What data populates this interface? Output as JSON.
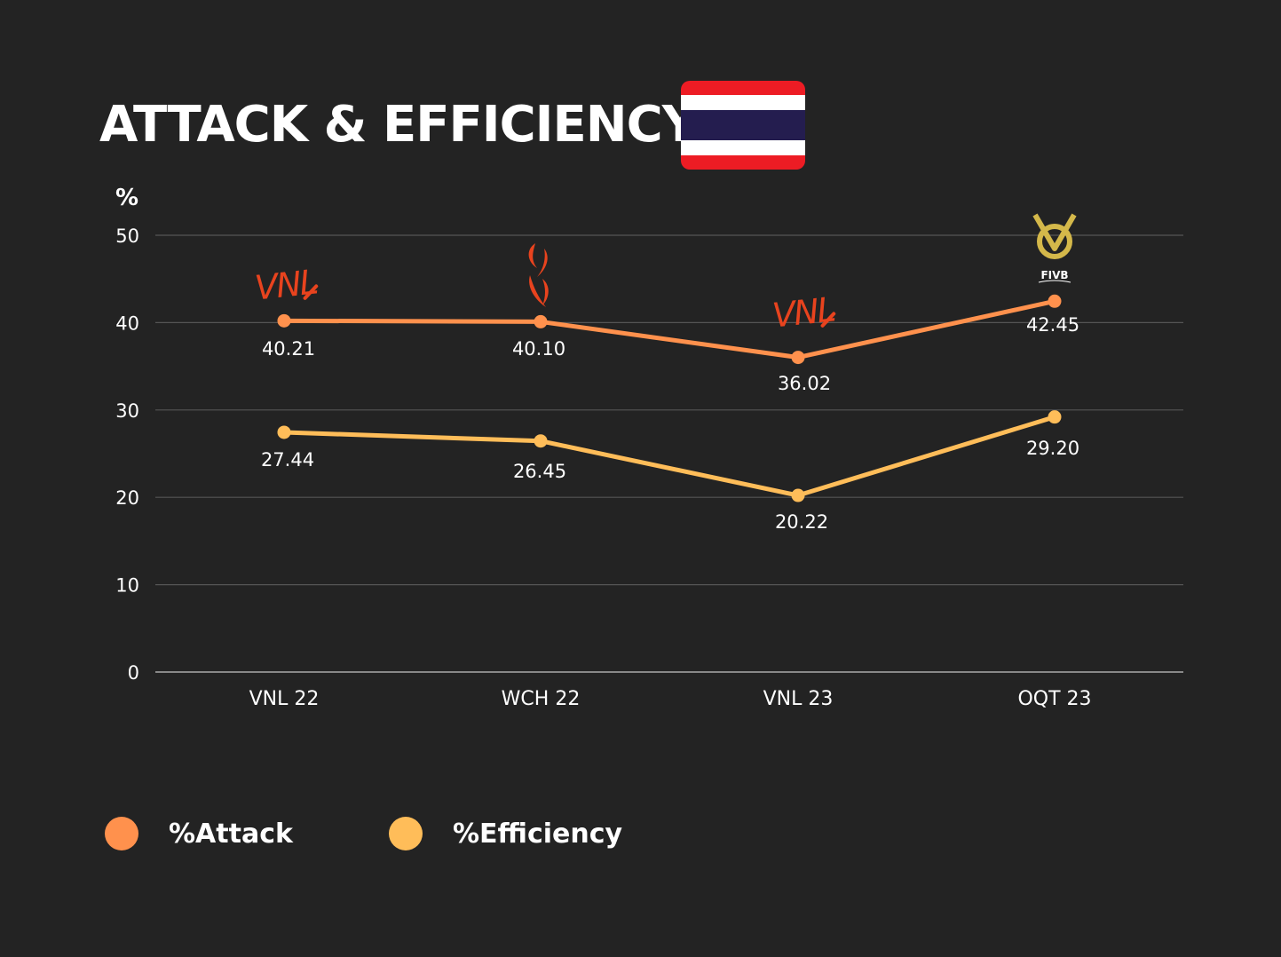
{
  "header": {
    "title": "ATTACK & EFFICIENCY",
    "flag_colors": [
      "#ED1C24",
      "#FFFFFF",
      "#241D4F",
      "#FFFFFF",
      "#ED1C24"
    ]
  },
  "colors": {
    "background": "#232323",
    "attack": "#FF914D",
    "efficiency": "#FFBD59",
    "grid": "#555555",
    "text": "#FFFFFF",
    "vnl_logo": "#E8431E",
    "wch_logo": "#E8431E",
    "oqt_logo": "#D4B84A"
  },
  "chart_data": {
    "type": "line",
    "title": "ATTACK & EFFICIENCY",
    "ylabel": "%",
    "xlabel": "",
    "ylim": [
      0,
      50
    ],
    "yticks": [
      0,
      10,
      20,
      30,
      40,
      50
    ],
    "grid": true,
    "legend_position": "bottom-left",
    "categories": [
      "VNL 22",
      "WCH 22",
      "VNL 23",
      "OQT 23"
    ],
    "series": [
      {
        "name": "%Attack",
        "values": [
          40.21,
          40.1,
          36.02,
          42.45
        ],
        "labels": [
          "40.21",
          "40.10",
          "36.02",
          "42.45"
        ],
        "color": "#FF914D"
      },
      {
        "name": "%Efficiency",
        "values": [
          27.44,
          26.45,
          20.22,
          29.2
        ],
        "labels": [
          "27.44",
          "26.45",
          "20.22",
          "29.20"
        ],
        "color": "#FFBD59"
      }
    ],
    "annotations": [
      {
        "category": "VNL 22",
        "icon": "vnl-logo-icon",
        "text": "VNL"
      },
      {
        "category": "WCH 22",
        "icon": "wch-logo-icon"
      },
      {
        "category": "VNL 23",
        "icon": "vnl-logo-icon",
        "text": "VNL"
      },
      {
        "category": "OQT 23",
        "icon": "fivb-logo-icon",
        "text": "FIVB"
      }
    ]
  },
  "legend": {
    "items": [
      {
        "label": "%Attack",
        "color": "#FF914D"
      },
      {
        "label": "%Efficiency",
        "color": "#FFBD59"
      }
    ]
  }
}
